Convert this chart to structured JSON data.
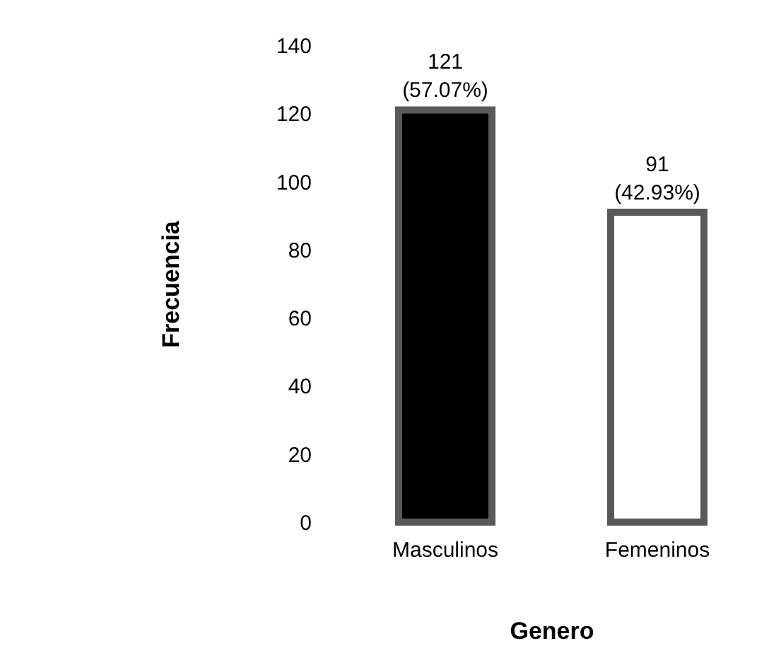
{
  "chart_data": {
    "type": "bar",
    "xlabel": "Genero",
    "ylabel": "Frecuencia",
    "categories": [
      "Masculinos",
      "Femeninos"
    ],
    "values": [
      121,
      91
    ],
    "colors": [
      "#000000",
      "#ffffff"
    ],
    "value_labels": [
      "121\n(57.07%)",
      "91\n(42.93%)"
    ],
    "ylim": [
      0,
      140
    ],
    "yticks": [
      0,
      20,
      40,
      60,
      80,
      100,
      120,
      140
    ],
    "grid": false
  }
}
